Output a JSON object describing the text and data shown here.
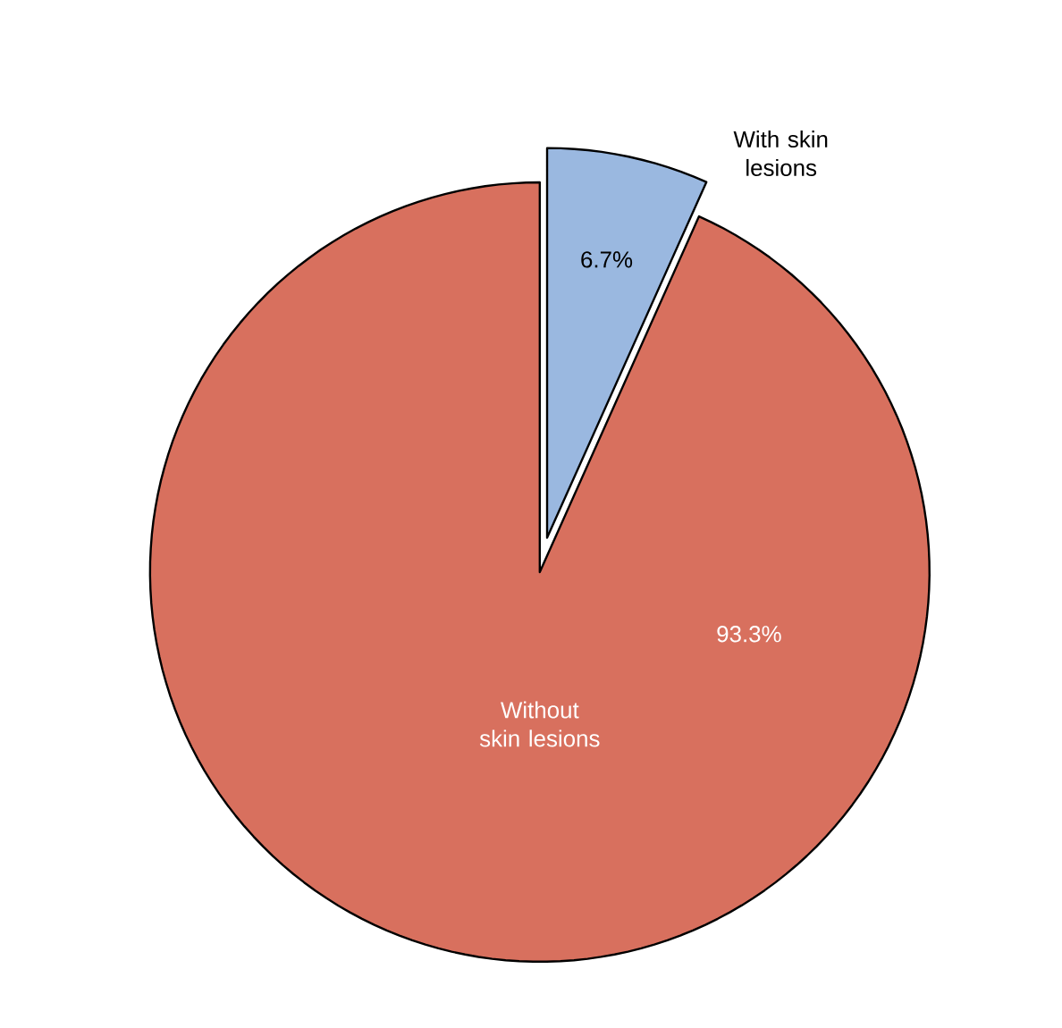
{
  "chart_data": {
    "type": "pie",
    "categories": [
      "With skin lesions",
      "Without skin lesions"
    ],
    "values": [
      6.7,
      93.3
    ],
    "colors": [
      "#9ab8e0",
      "#d8705e"
    ],
    "value_labels": [
      "6.7%",
      "93.3%"
    ]
  }
}
